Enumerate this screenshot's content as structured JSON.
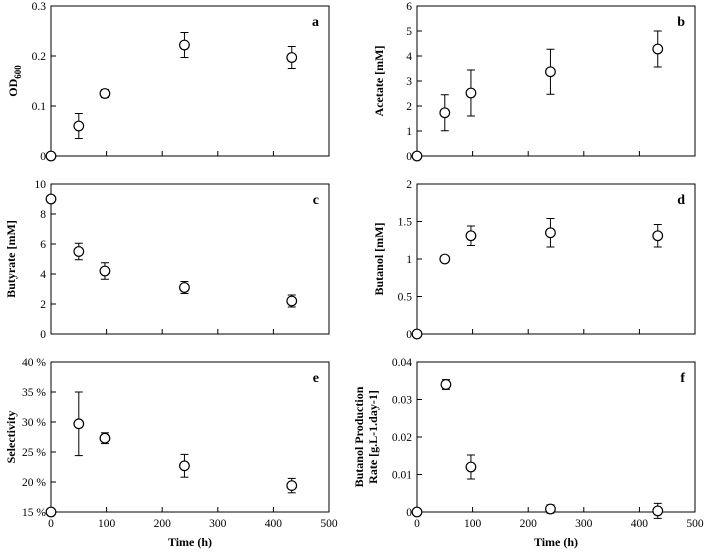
{
  "chart_data": [
    {
      "letter": "a",
      "type": "scatter",
      "ylabel": "OD",
      "ylabel_sub": "600",
      "xlabel": "",
      "xlim": [
        0,
        500
      ],
      "ylim": [
        0,
        0.3
      ],
      "xticks": [],
      "yticks": [
        0,
        0.1,
        0.2,
        0.3
      ],
      "ytick_labels": [
        "0",
        "0.1",
        "0.2",
        "0.3"
      ],
      "series": [
        {
          "x": [
            0,
            50,
            97,
            240,
            433
          ],
          "y": [
            0,
            0.06,
            0.125,
            0.222,
            0.197
          ],
          "err": [
            0,
            0.025,
            0.008,
            0.025,
            0.022
          ]
        }
      ]
    },
    {
      "letter": "b",
      "type": "scatter",
      "ylabel": "Acetate [mM]",
      "ylabel_sub": "",
      "xlabel": "",
      "xlim": [
        0,
        500
      ],
      "ylim": [
        0,
        6
      ],
      "xticks": [],
      "yticks": [
        0,
        1,
        2,
        3,
        4,
        5,
        6
      ],
      "ytick_labels": [
        "0",
        "1",
        "2",
        "3",
        "4",
        "5",
        "6"
      ],
      "series": [
        {
          "x": [
            0,
            50,
            97,
            240,
            433
          ],
          "y": [
            0,
            1.73,
            2.52,
            3.37,
            4.28
          ],
          "err": [
            0,
            0.72,
            0.92,
            0.9,
            0.72
          ]
        }
      ]
    },
    {
      "letter": "c",
      "type": "scatter",
      "ylabel": "Butyrate [mM]",
      "ylabel_sub": "",
      "xlabel": "",
      "xlim": [
        0,
        500
      ],
      "ylim": [
        0,
        10
      ],
      "xticks": [],
      "yticks": [
        0,
        2,
        4,
        6,
        8,
        10
      ],
      "ytick_labels": [
        "0",
        "2",
        "4",
        "6",
        "8",
        "10"
      ],
      "series": [
        {
          "x": [
            0,
            50,
            97,
            240,
            433
          ],
          "y": [
            9.0,
            5.5,
            4.2,
            3.1,
            2.2
          ],
          "err": [
            0,
            0.55,
            0.55,
            0.4,
            0.4
          ]
        }
      ]
    },
    {
      "letter": "d",
      "type": "scatter",
      "ylabel": "Butanol [mM]",
      "ylabel_sub": "",
      "xlabel": "",
      "xlim": [
        0,
        500
      ],
      "ylim": [
        0,
        2
      ],
      "xticks": [],
      "yticks": [
        0,
        0.5,
        1,
        1.5,
        2
      ],
      "ytick_labels": [
        "0",
        "0.5",
        "1",
        "1.5",
        "2"
      ],
      "series": [
        {
          "x": [
            0,
            50,
            97,
            240,
            433
          ],
          "y": [
            0,
            1.0,
            1.31,
            1.35,
            1.31
          ],
          "err": [
            0,
            0.04,
            0.13,
            0.19,
            0.15
          ]
        }
      ]
    },
    {
      "letter": "e",
      "type": "scatter",
      "ylabel": "Selectivity",
      "ylabel_sub": "",
      "xlabel": "Time (h)",
      "xlim": [
        0,
        500
      ],
      "ylim": [
        15,
        40
      ],
      "xticks": [
        0,
        100,
        200,
        300,
        400,
        500
      ],
      "xtick_labels": [
        "0",
        "100",
        "200",
        "300",
        "400",
        "500"
      ],
      "yticks": [
        15,
        20,
        25,
        30,
        35,
        40
      ],
      "ytick_labels": [
        "15 %",
        "20 %",
        "25 %",
        "30 %",
        "35 %",
        "40 %"
      ],
      "series": [
        {
          "x": [
            0,
            50,
            97,
            240,
            433
          ],
          "y": [
            15.0,
            29.7,
            27.3,
            22.7,
            19.4
          ],
          "err": [
            0,
            5.3,
            0.9,
            1.9,
            1.2
          ]
        }
      ]
    },
    {
      "letter": "f",
      "type": "scatter",
      "ylabel": "Butanol Production",
      "ylabel_line2": "Rate [g.L-1.day-1]",
      "ylabel_sub": "",
      "xlabel": "Time (h)",
      "xlim": [
        0,
        500
      ],
      "ylim": [
        0,
        0.04
      ],
      "xticks": [
        0,
        100,
        200,
        300,
        400,
        500
      ],
      "xtick_labels": [
        "0",
        "100",
        "200",
        "300",
        "400",
        "500"
      ],
      "yticks": [
        0,
        0.01,
        0.02,
        0.03,
        0.04
      ],
      "ytick_labels": [
        "0",
        "0.01",
        "0.02",
        "0.03",
        "0.04"
      ],
      "series": [
        {
          "x": [
            0,
            52,
            97,
            240,
            433
          ],
          "y": [
            0,
            0.034,
            0.012,
            0.0008,
            0.0003
          ],
          "err": [
            0,
            0.0013,
            0.0032,
            0.0011,
            0.002
          ]
        }
      ]
    }
  ]
}
